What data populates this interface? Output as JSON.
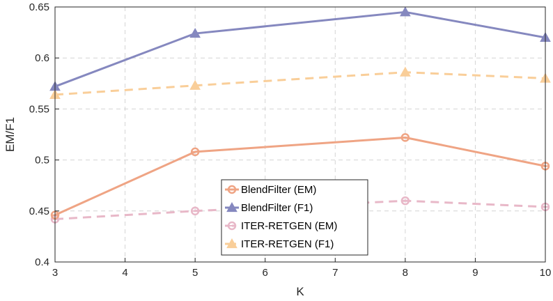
{
  "chart_data": {
    "type": "line",
    "xlabel": "K",
    "ylabel": "EM/F1",
    "x": [
      3,
      5,
      8,
      10
    ],
    "xlim": [
      3,
      10
    ],
    "ylim": [
      0.4,
      0.65
    ],
    "xticks": [
      "3",
      "4",
      "5",
      "6",
      "7",
      "8",
      "9",
      "10"
    ],
    "yticks": [
      "0.4",
      "0.45",
      "0.5",
      "0.55",
      "0.6",
      "0.65"
    ],
    "grid": true,
    "legend_position": "bottom-center",
    "series": [
      {
        "name": "BlendFilter (EM)",
        "values": [
          0.446,
          0.508,
          0.522,
          0.494
        ],
        "color": "#EFA484",
        "marker": "circle",
        "dash": "solid"
      },
      {
        "name": "BlendFilter (F1)",
        "values": [
          0.572,
          0.624,
          0.645,
          0.62
        ],
        "color": "#8588BF",
        "marker": "triangle",
        "dash": "solid"
      },
      {
        "name": "ITER-RETGEN (EM)",
        "values": [
          0.442,
          0.45,
          0.46,
          0.454
        ],
        "color": "#E8B8C8",
        "marker": "circle",
        "dash": "dashed"
      },
      {
        "name": "ITER-RETGEN (F1)",
        "values": [
          0.564,
          0.573,
          0.586,
          0.58
        ],
        "color": "#F9CE99",
        "marker": "triangle",
        "dash": "dashed"
      }
    ]
  }
}
